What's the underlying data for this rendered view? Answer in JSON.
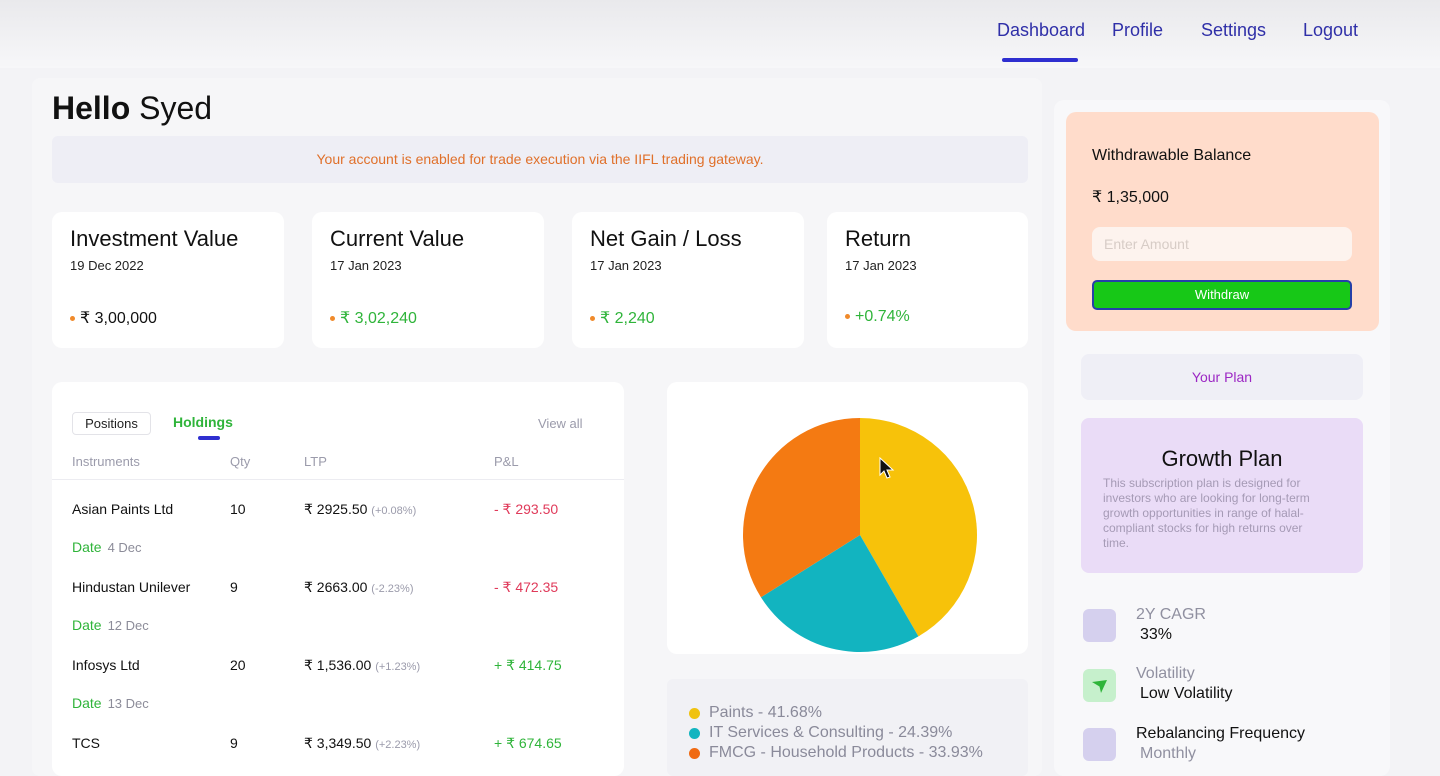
{
  "nav": {
    "items": [
      "Dashboard",
      "Profile",
      "Settings",
      "Logout"
    ]
  },
  "greeting": {
    "hello": "Hello",
    "name": "Syed"
  },
  "notice": "Your account is enabled for trade execution via the IIFL trading gateway.",
  "stats": [
    {
      "title": "Investment Value",
      "date": "19 Dec 2022",
      "value": "₹ 3,00,000"
    },
    {
      "title": "Current Value",
      "date": "17 Jan 2023",
      "value": "₹ 3,02,240"
    },
    {
      "title": "Net Gain / Loss",
      "date": "17 Jan 2023",
      "value": "₹ 2,240"
    },
    {
      "title": "Return",
      "date": "17 Jan 2023",
      "value": "+0.74%"
    }
  ],
  "holdings": {
    "tab_positions": "Positions",
    "tab_holdings": "Holdings",
    "view_all": "View all",
    "headers": [
      "Instruments",
      "Qty",
      "LTP",
      "P&L"
    ],
    "date_label": "Date",
    "rows": [
      {
        "name": "Asian Paints Ltd",
        "qty": "10",
        "ltp": "₹ 2925.50",
        "ltp_pct": "(+0.08%)",
        "pnl": "- ₹ 293.50",
        "date": "4 Dec"
      },
      {
        "name": "Hindustan Unilever",
        "qty": "9",
        "ltp": "₹ 2663.00",
        "ltp_pct": "(-2.23%)",
        "pnl": "- ₹ 472.35",
        "date": "12 Dec"
      },
      {
        "name": "Infosys Ltd",
        "qty": "20",
        "ltp": "₹ 1,536.00",
        "ltp_pct": "(+1.23%)",
        "pnl": "+ ₹ 414.75",
        "date": "13 Dec"
      },
      {
        "name": "TCS",
        "qty": "9",
        "ltp": "₹ 3,349.50",
        "ltp_pct": "(+2.23%)",
        "pnl": "+ ₹ 674.65",
        "date": ""
      }
    ]
  },
  "allocation": {
    "legend": [
      "Paints - 41.68%",
      "IT Services & Consulting - 24.39%",
      "FMCG - Household Products - 33.93%"
    ]
  },
  "chart_data": {
    "type": "pie",
    "categories": [
      "Paints",
      "IT Services & Consulting",
      "FMCG - Household Products"
    ],
    "values": [
      41.68,
      24.39,
      33.93
    ],
    "colors": [
      "#f7c20a",
      "#12b4c0",
      "#f47a12"
    ],
    "title": ""
  },
  "balance": {
    "title": "Withdrawable Balance",
    "amount": "₹ 1,35,000",
    "input_placeholder": "Enter Amount",
    "withdraw_label": "Withdraw"
  },
  "plan": {
    "your_plan": "Your Plan",
    "name": "Growth Plan",
    "description": "This subscription plan is designed for investors who are looking for long-term growth opportunities in range of halal-compliant stocks for high returns over time.",
    "metrics": [
      {
        "label": "2Y CAGR",
        "value": "33%"
      },
      {
        "label": "Volatility",
        "value": "Low Volatility"
      },
      {
        "label": "Rebalancing Frequency",
        "value": "Monthly"
      }
    ]
  }
}
